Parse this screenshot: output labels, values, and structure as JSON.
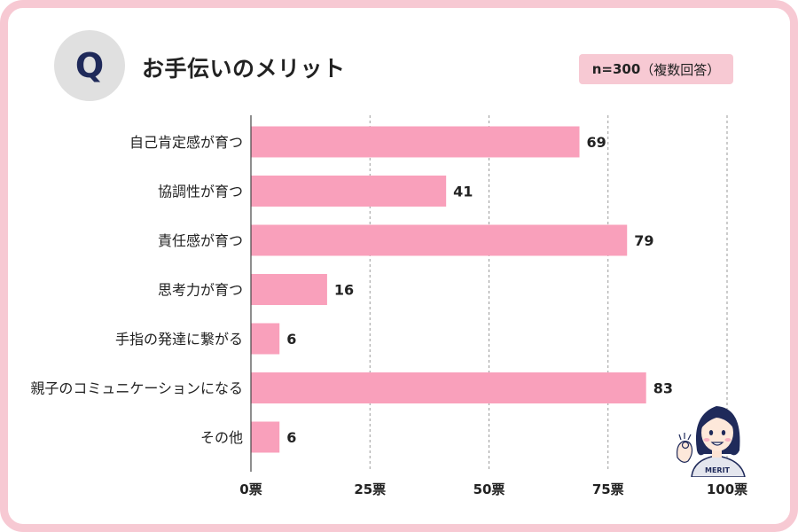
{
  "header": {
    "q_letter": "Q",
    "title": "お手伝いのメリット",
    "n_value": "n=300",
    "n_note": "（複数回答）"
  },
  "colors": {
    "bar": "#f9a0bb",
    "frame": "#f7c9d3",
    "badge": "#f7c9d3",
    "q_circle": "#e0e0e0",
    "q_letter": "#1f2a5a",
    "grid": "#9a9a9a"
  },
  "illustration": {
    "shirt_text": "MERIT"
  },
  "chart_data": {
    "type": "bar",
    "orientation": "horizontal",
    "title": "お手伝いのメリット",
    "categories": [
      "自己肯定感が育つ",
      "協調性が育つ",
      "責任感が育つ",
      "思考力が育つ",
      "手指の発達に繋がる",
      "親子のコミュニケーションになる",
      "その他"
    ],
    "values": [
      69,
      41,
      79,
      16,
      6,
      83,
      6
    ],
    "xlim": [
      0,
      100
    ],
    "x_ticks": [
      0,
      25,
      50,
      75,
      100
    ],
    "tick_labels": [
      "0票",
      "25票",
      "50票",
      "75票",
      "100票"
    ],
    "grid": true,
    "grid_style": "dashed vertical"
  }
}
